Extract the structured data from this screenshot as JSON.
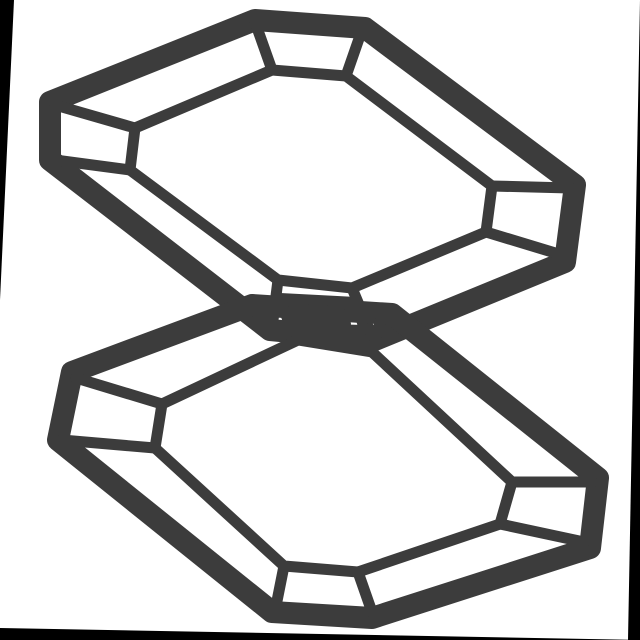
{
  "image": {
    "subject": "stacked-octagon-frames-icon",
    "colors": {
      "background": "#000000",
      "paper": "#ffffff",
      "stroke": "#3c3c3c"
    }
  }
}
